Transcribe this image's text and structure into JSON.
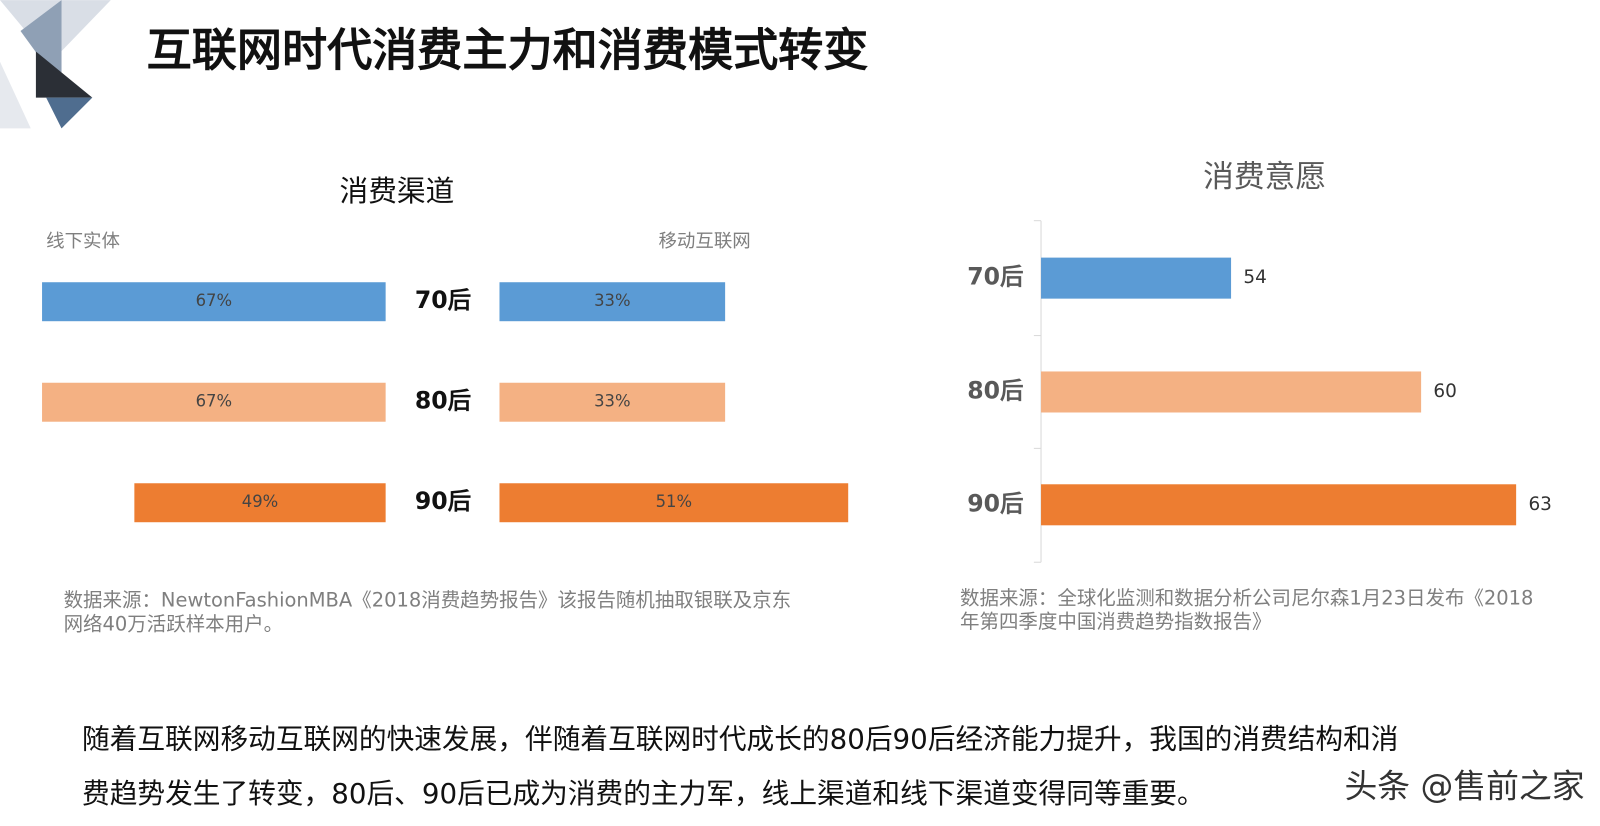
{
  "title": "互联网时代消费主力和消费模式转变",
  "chart_data": [
    {
      "type": "butterfly",
      "title": "消费渠道",
      "categories": [
        "70后",
        "80后",
        "90后"
      ],
      "colors": [
        "#5b9bd5",
        "#f4b183",
        "#ed7d31"
      ],
      "series": [
        {
          "name": "线下实体",
          "values": [
            67,
            67,
            49
          ],
          "value_labels": [
            "67%",
            "67%",
            "49%"
          ],
          "xlim": [
            0,
            100
          ]
        },
        {
          "name": "移动互联网",
          "values": [
            33,
            33,
            51
          ],
          "value_labels": [
            "33%",
            "33%",
            "51%"
          ],
          "xlim": [
            0,
            75
          ]
        }
      ],
      "source": [
        "数据来源：NewtonFashionMBA《2018消费趋势报告》该报告随机抽取银联及京东",
        "网络40万活跃样本用户。"
      ]
    },
    {
      "type": "bar",
      "title": "消费意愿",
      "categories": [
        "70后",
        "80后",
        "90后"
      ],
      "colors": [
        "#5b9bd5",
        "#f4b183",
        "#ed7d31"
      ],
      "values": [
        54,
        60,
        63
      ],
      "xlim": [
        48,
        65
      ],
      "source": [
        "数据来源：全球化监测和数据分析公司尼尔森1月23日发布《2018",
        "年第四季度中国消费趋势指数报告》"
      ]
    }
  ],
  "body": [
    "随着互联网移动互联网的快速发展，伴随着互联网时代成长的80后90后经济能力提升，我国的消费结构和消",
    "费趋势发生了转变，80后、90后已成为消费的主力军，线上渠道和线下渠道变得同等重要。"
  ],
  "watermark": "头条 @售前之家"
}
